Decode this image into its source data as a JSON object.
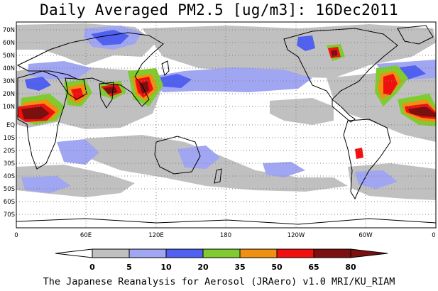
{
  "title": "Daily Averaged PM2.5 [ug/m3]: 16Dec2011",
  "credit": "The Japanese Reanalysis for Aerosol (JRAero) v1.0 MRI/KU_RIAM",
  "lat_labels": [
    "70N",
    "60N",
    "50N",
    "40N",
    "30N",
    "20N",
    "10N",
    "EQ",
    "10S",
    "20S",
    "30S",
    "40S",
    "50S",
    "60S",
    "70S"
  ],
  "lon_labels": [
    "0",
    "60E",
    "120E",
    "180",
    "120W",
    "60W",
    "0"
  ],
  "colorbar": {
    "labels": [
      "0",
      "5",
      "10",
      "20",
      "35",
      "50",
      "65",
      "80"
    ],
    "colors": [
      "#ffffff",
      "#c0c0c0",
      "#a0a6f2",
      "#5060f0",
      "#80cc30",
      "#f09010",
      "#f01010",
      "#7a1010"
    ]
  }
}
